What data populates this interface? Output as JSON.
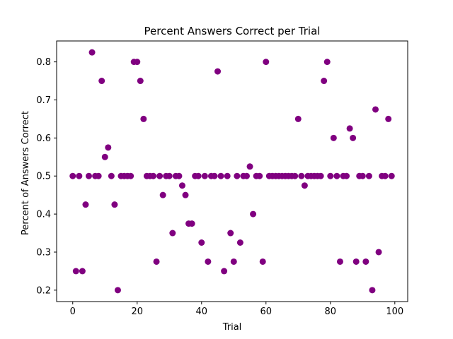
{
  "chart_data": {
    "type": "scatter",
    "title": "Percent Answers Correct per Trial",
    "xlabel": "Trial",
    "ylabel": "Percent of Answers Correct",
    "xlim": [
      -5,
      104
    ],
    "ylim": [
      0.17,
      0.855
    ],
    "xticks": [
      0,
      20,
      40,
      60,
      80,
      100
    ],
    "yticks": [
      0.2,
      0.3,
      0.4,
      0.5,
      0.6,
      0.7,
      0.8
    ],
    "grid": false,
    "marker_color": "#800080",
    "x": [
      0,
      1,
      2,
      3,
      4,
      5,
      6,
      7,
      8,
      9,
      10,
      11,
      12,
      13,
      14,
      15,
      16,
      17,
      18,
      19,
      20,
      21,
      22,
      23,
      24,
      25,
      26,
      27,
      28,
      29,
      30,
      31,
      32,
      33,
      34,
      35,
      36,
      37,
      38,
      39,
      40,
      41,
      42,
      43,
      44,
      45,
      46,
      47,
      48,
      49,
      50,
      51,
      52,
      53,
      54,
      55,
      56,
      57,
      58,
      59,
      60,
      61,
      62,
      63,
      64,
      65,
      66,
      67,
      68,
      69,
      70,
      71,
      72,
      73,
      74,
      75,
      76,
      77,
      78,
      79,
      80,
      81,
      82,
      83,
      84,
      85,
      86,
      87,
      88,
      89,
      90,
      91,
      92,
      93,
      94,
      95,
      96,
      97,
      98,
      99
    ],
    "y": [
      0.5,
      0.25,
      0.5,
      0.25,
      0.425,
      0.5,
      0.825,
      0.5,
      0.5,
      0.75,
      0.55,
      0.575,
      0.5,
      0.425,
      0.2,
      0.5,
      0.5,
      0.5,
      0.5,
      0.8,
      0.8,
      0.75,
      0.65,
      0.5,
      0.5,
      0.5,
      0.275,
      0.5,
      0.45,
      0.5,
      0.5,
      0.35,
      0.5,
      0.5,
      0.475,
      0.45,
      0.375,
      0.375,
      0.5,
      0.5,
      0.325,
      0.5,
      0.275,
      0.5,
      0.5,
      0.775,
      0.5,
      0.25,
      0.5,
      0.35,
      0.275,
      0.5,
      0.325,
      0.5,
      0.5,
      0.525,
      0.4,
      0.5,
      0.5,
      0.275,
      0.8,
      0.5,
      0.5,
      0.5,
      0.5,
      0.5,
      0.5,
      0.5,
      0.5,
      0.5,
      0.65,
      0.5,
      0.475,
      0.5,
      0.5,
      0.5,
      0.5,
      0.5,
      0.75,
      0.8,
      0.5,
      0.6,
      0.5,
      0.275,
      0.5,
      0.5,
      0.625,
      0.6,
      0.275,
      0.5,
      0.5,
      0.275,
      0.5,
      0.2,
      0.675,
      0.3,
      0.5,
      0.5,
      0.65,
      0.5
    ]
  }
}
